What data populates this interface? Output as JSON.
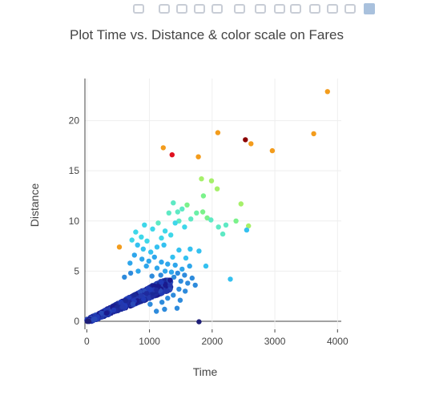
{
  "modebar": {
    "icons": [
      "camera-icon",
      "zoom-icon",
      "pan-icon",
      "box-select-icon",
      "lasso-select-icon",
      "zoom-in-icon",
      "zoom-out-icon",
      "autoscale-icon",
      "reset-axes-icon",
      "spike-lines-icon",
      "hover-closest-icon",
      "hover-compare-icon",
      "plotly-logo-icon"
    ],
    "color": "#c8cdd6",
    "accent": "#a9c1dd"
  },
  "chart_data": {
    "type": "scatter",
    "title": "Plot Time vs. Distance & color scale on Fares",
    "xlabel": "Time",
    "ylabel": "Distance",
    "xlim": [
      -30,
      4060
    ],
    "ylim": [
      -0.8,
      24.2
    ],
    "xticks": [
      0,
      1000,
      2000,
      3000,
      4000
    ],
    "xtick_labels": [
      "0",
      "1000",
      "2000",
      "3000",
      "4000"
    ],
    "yticks": [
      0,
      5,
      10,
      15,
      20
    ],
    "ytick_labels": [
      "0",
      "5",
      "10",
      "15",
      "20"
    ],
    "grid": true,
    "colorscale": "Jet",
    "series": [
      {
        "points": [
          {
            "x": 3840,
            "y": 22.9,
            "color": "#f39c1c"
          },
          {
            "x": 3620,
            "y": 18.7,
            "color": "#f39c1c"
          },
          {
            "x": 2530,
            "y": 18.1,
            "color": "#8b0000"
          },
          {
            "x": 2620,
            "y": 17.7,
            "color": "#f39c1c"
          },
          {
            "x": 2090,
            "y": 18.8,
            "color": "#f39c1c"
          },
          {
            "x": 2960,
            "y": 17.0,
            "color": "#f39c1c"
          },
          {
            "x": 1220,
            "y": 17.3,
            "color": "#f39c1c"
          },
          {
            "x": 1360,
            "y": 16.6,
            "color": "#e0101f"
          },
          {
            "x": 1780,
            "y": 16.4,
            "color": "#f39c1c"
          },
          {
            "x": 520,
            "y": 7.4,
            "color": "#f39c1c"
          },
          {
            "x": 1830,
            "y": 14.2,
            "color": "#a6f06a"
          },
          {
            "x": 2080,
            "y": 13.2,
            "color": "#a6f06a"
          },
          {
            "x": 1990,
            "y": 14.0,
            "color": "#a6f06a"
          },
          {
            "x": 2460,
            "y": 11.7,
            "color": "#a6f06a"
          },
          {
            "x": 2580,
            "y": 9.5,
            "color": "#a6f06a"
          },
          {
            "x": 2380,
            "y": 10.0,
            "color": "#7bf28b"
          },
          {
            "x": 1860,
            "y": 12.5,
            "color": "#7bf28b"
          },
          {
            "x": 1600,
            "y": 11.6,
            "color": "#7bf28b"
          },
          {
            "x": 1850,
            "y": 10.9,
            "color": "#7bf28b"
          },
          {
            "x": 1920,
            "y": 10.3,
            "color": "#7bf28b"
          },
          {
            "x": 1750,
            "y": 10.8,
            "color": "#6cf0a8"
          },
          {
            "x": 1380,
            "y": 11.8,
            "color": "#5ee9c4"
          },
          {
            "x": 1450,
            "y": 10.9,
            "color": "#5ee9c4"
          },
          {
            "x": 1520,
            "y": 11.2,
            "color": "#5ee9c4"
          },
          {
            "x": 2220,
            "y": 9.6,
            "color": "#5ee9c4"
          },
          {
            "x": 2100,
            "y": 9.4,
            "color": "#5ee9c4"
          },
          {
            "x": 1660,
            "y": 10.2,
            "color": "#5ee9c4"
          },
          {
            "x": 1310,
            "y": 10.8,
            "color": "#5ee9c4"
          },
          {
            "x": 1470,
            "y": 10.0,
            "color": "#5ee9c4"
          },
          {
            "x": 1140,
            "y": 9.8,
            "color": "#5ee9c4"
          },
          {
            "x": 2170,
            "y": 8.7,
            "color": "#5ee9c4"
          },
          {
            "x": 1980,
            "y": 10.1,
            "color": "#5ee9c4"
          },
          {
            "x": 920,
            "y": 9.6,
            "color": "#3ed7e9"
          },
          {
            "x": 780,
            "y": 8.9,
            "color": "#3ed7e9"
          },
          {
            "x": 870,
            "y": 8.4,
            "color": "#3ed7e9"
          },
          {
            "x": 1050,
            "y": 9.2,
            "color": "#3ed7e9"
          },
          {
            "x": 1250,
            "y": 9.0,
            "color": "#3ed7e9"
          },
          {
            "x": 1340,
            "y": 8.6,
            "color": "#3ed7e9"
          },
          {
            "x": 1190,
            "y": 8.3,
            "color": "#3ed7e9"
          },
          {
            "x": 720,
            "y": 8.1,
            "color": "#3ed7e9"
          },
          {
            "x": 960,
            "y": 8.0,
            "color": "#3ed7e9"
          },
          {
            "x": 1560,
            "y": 9.4,
            "color": "#3ed7e9"
          },
          {
            "x": 1410,
            "y": 9.8,
            "color": "#3ed7e9"
          },
          {
            "x": 1120,
            "y": 7.4,
            "color": "#34c1f0"
          },
          {
            "x": 1230,
            "y": 7.6,
            "color": "#34c1f0"
          },
          {
            "x": 1470,
            "y": 7.1,
            "color": "#34c1f0"
          },
          {
            "x": 1650,
            "y": 7.2,
            "color": "#34c1f0"
          },
          {
            "x": 1790,
            "y": 7.0,
            "color": "#34c1f0"
          },
          {
            "x": 900,
            "y": 7.2,
            "color": "#34c1f0"
          },
          {
            "x": 1020,
            "y": 6.9,
            "color": "#34c1f0"
          },
          {
            "x": 810,
            "y": 7.6,
            "color": "#34c1f0"
          },
          {
            "x": 1370,
            "y": 6.4,
            "color": "#34c1f0"
          },
          {
            "x": 1580,
            "y": 6.3,
            "color": "#34c1f0"
          },
          {
            "x": 2550,
            "y": 9.1,
            "color": "#34c1f0"
          },
          {
            "x": 1900,
            "y": 5.5,
            "color": "#34c1f0"
          },
          {
            "x": 2290,
            "y": 4.2,
            "color": "#34c1f0"
          },
          {
            "x": 760,
            "y": 6.6,
            "color": "#2ea6eb"
          },
          {
            "x": 880,
            "y": 6.2,
            "color": "#2ea6eb"
          },
          {
            "x": 990,
            "y": 6.0,
            "color": "#2ea6eb"
          },
          {
            "x": 1080,
            "y": 6.4,
            "color": "#2ea6eb"
          },
          {
            "x": 1190,
            "y": 5.9,
            "color": "#2ea6eb"
          },
          {
            "x": 1290,
            "y": 5.7,
            "color": "#2ea6eb"
          },
          {
            "x": 1410,
            "y": 5.6,
            "color": "#2ea6eb"
          },
          {
            "x": 1520,
            "y": 5.2,
            "color": "#2ea6eb"
          },
          {
            "x": 1640,
            "y": 5.5,
            "color": "#2ea6eb"
          },
          {
            "x": 690,
            "y": 5.8,
            "color": "#2ea6eb"
          },
          {
            "x": 950,
            "y": 5.5,
            "color": "#2ea6eb"
          },
          {
            "x": 1120,
            "y": 5.3,
            "color": "#2ea6eb"
          },
          {
            "x": 1250,
            "y": 5.0,
            "color": "#2ea6eb"
          },
          {
            "x": 1350,
            "y": 4.9,
            "color": "#2ea6eb"
          },
          {
            "x": 820,
            "y": 5.0,
            "color": "#2ea6eb"
          },
          {
            "x": 1450,
            "y": 4.8,
            "color": "#2e8bdc"
          },
          {
            "x": 1560,
            "y": 4.6,
            "color": "#2e8bdc"
          },
          {
            "x": 1680,
            "y": 4.3,
            "color": "#2e8bdc"
          },
          {
            "x": 1500,
            "y": 4.0,
            "color": "#2e8bdc"
          },
          {
            "x": 1610,
            "y": 3.8,
            "color": "#2e8bdc"
          },
          {
            "x": 1730,
            "y": 3.6,
            "color": "#2e8bdc"
          },
          {
            "x": 1390,
            "y": 4.4,
            "color": "#2e8bdc"
          },
          {
            "x": 1180,
            "y": 4.6,
            "color": "#2e8bdc"
          },
          {
            "x": 1040,
            "y": 4.5,
            "color": "#2e8bdc"
          },
          {
            "x": 600,
            "y": 4.4,
            "color": "#2e8bdc"
          },
          {
            "x": 700,
            "y": 4.8,
            "color": "#2e8bdc"
          },
          {
            "x": 1470,
            "y": 3.2,
            "color": "#2e8bdc"
          },
          {
            "x": 1570,
            "y": 3.0,
            "color": "#2e8bdc"
          },
          {
            "x": 1380,
            "y": 2.6,
            "color": "#2e8bdc"
          },
          {
            "x": 1290,
            "y": 2.3,
            "color": "#2e8bdc"
          },
          {
            "x": 1490,
            "y": 2.1,
            "color": "#2e8bdc"
          },
          {
            "x": 1440,
            "y": 1.3,
            "color": "#2e8bdc"
          },
          {
            "x": 1240,
            "y": 1.2,
            "color": "#2e8bdc"
          },
          {
            "x": 1110,
            "y": 1.0,
            "color": "#2e8bdc"
          },
          {
            "x": 1010,
            "y": 1.7,
            "color": "#2e8bdc"
          },
          {
            "x": 1200,
            "y": 1.9,
            "color": "#2e8bdc"
          },
          {
            "x": 1790,
            "y": -0.05,
            "color": "#1e1e78"
          },
          {
            "x": 10,
            "y": 0,
            "color": "#1e1e78"
          },
          {
            "x": 30,
            "y": 0,
            "color": "#1e1e78"
          }
        ],
        "cluster": {
          "x_range": [
            0,
            1340
          ],
          "y_range": [
            0,
            4.1
          ],
          "slope_y_per_x": 0.00285,
          "spread": 1.0,
          "count": 900,
          "colors": [
            "#1a1a8e",
            "#1f2a9e",
            "#2438ad",
            "#213ab6",
            "#2a4ab8",
            "#1a2896"
          ]
        }
      }
    ]
  }
}
